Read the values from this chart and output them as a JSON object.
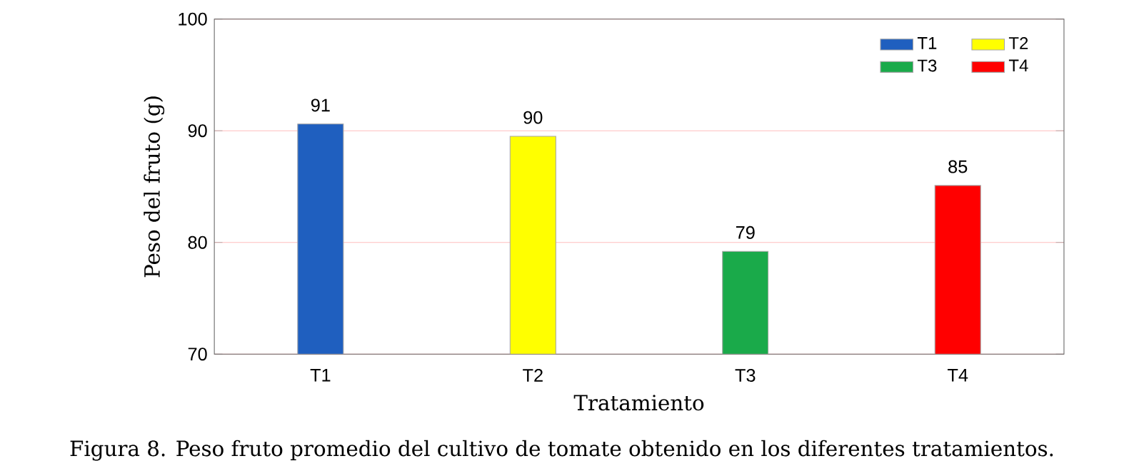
{
  "chart_data": {
    "type": "bar",
    "xlabel": "Tratamiento",
    "ylabel": "Peso del fruto (g)",
    "categories": [
      "T1",
      "T2",
      "T3",
      "T4"
    ],
    "series": [
      {
        "name": "T1",
        "color": "#1f5fbf",
        "values": [
          90.6,
          null,
          null,
          null
        ],
        "value_labels": [
          "91",
          null,
          null,
          null
        ]
      },
      {
        "name": "T2",
        "color": "#ffff00",
        "values": [
          null,
          89.5,
          null,
          null
        ],
        "value_labels": [
          null,
          "90",
          null,
          null
        ]
      },
      {
        "name": "T3",
        "color": "#1aaa4a",
        "values": [
          null,
          null,
          79.2,
          null
        ],
        "value_labels": [
          null,
          null,
          "79",
          null
        ]
      },
      {
        "name": "T4",
        "color": "#ff0000",
        "values": [
          null,
          null,
          null,
          85.1
        ],
        "value_labels": [
          null,
          null,
          null,
          "85"
        ]
      }
    ],
    "ylim": [
      70,
      100
    ],
    "yticks": [
      70,
      80,
      90,
      100
    ],
    "grid": "y",
    "legend": "top right",
    "annotations": [
      "Figura 8. Peso fruto promedio del cultivo de tomate obtenido en los diferentes tratamientos."
    ]
  }
}
